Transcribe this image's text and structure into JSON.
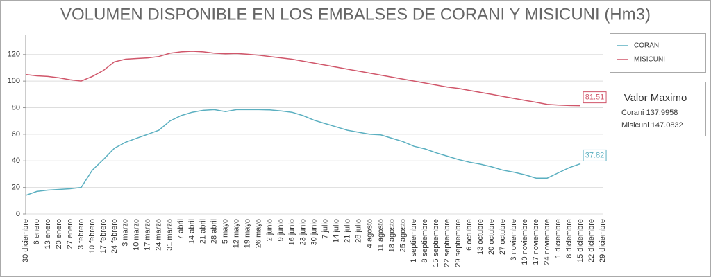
{
  "chart_data": {
    "type": "line",
    "title": "VOLUMEN DISPONIBLE EN LOS EMBALSES DE CORANI Y MISICUNI (Hm3)",
    "categories": [
      "30 diciembre",
      "6 enero",
      "13 enero",
      "20 enero",
      "27 enero",
      "3 febrero",
      "10 febrero",
      "17 febrero",
      "24 febrero",
      "3 marzo",
      "10 marzo",
      "17 marzo",
      "24 marzo",
      "31 marzo",
      "7 abril",
      "14 abril",
      "21 abril",
      "28 abril",
      "5 mayo",
      "12 mayo",
      "19 mayo",
      "26 mayo",
      "2 junio",
      "9 junio",
      "16 junio",
      "23 junio",
      "30 junio",
      "7 julio",
      "14 julio",
      "21 julio",
      "28 julio",
      "4 agosto",
      "11 agosto",
      "18 agosto",
      "25 agosto",
      "1 septiembre",
      "8 septiembre",
      "15 septiembre",
      "22 septiembre",
      "29 septiembre",
      "6 octubre",
      "13 octubre",
      "20 octubre",
      "27 octubre",
      "3 noviembre",
      "10 noviembre",
      "17 noviembre",
      "24 noviembre",
      "1 diciembre",
      "8 diciembre",
      "15 diciembre",
      "22 diciembre",
      "29 diciembre"
    ],
    "series": [
      {
        "name": "CORANI",
        "color": "#5aafc0",
        "values": [
          14,
          17,
          18,
          18.5,
          19,
          20,
          33,
          41,
          49.5,
          54,
          57,
          60,
          63,
          70,
          74,
          76.5,
          78,
          78.5,
          77,
          78.5,
          78.5,
          78.5,
          78.3,
          77.5,
          76.5,
          74,
          70.5,
          68,
          65.5,
          63,
          61.5,
          60,
          59.5,
          57,
          54.5,
          51,
          49,
          46,
          43.5,
          41,
          39,
          37.5,
          35.5,
          33,
          31.5,
          29.5,
          27,
          27,
          31,
          35,
          37.82,
          null,
          null
        ]
      },
      {
        "name": "MISICUNI",
        "color": "#d0566a",
        "values": [
          105,
          104,
          103.5,
          102.5,
          101,
          100,
          103.5,
          108,
          114.5,
          116.5,
          117,
          117.5,
          118.5,
          121,
          122,
          122.5,
          122,
          121,
          120.5,
          120.8,
          120.2,
          119.5,
          118.5,
          117.5,
          116.5,
          115,
          113.5,
          112,
          110.5,
          109,
          107.5,
          106,
          104.5,
          103,
          101.5,
          100,
          98.5,
          97,
          95.5,
          94.5,
          93,
          91.5,
          90,
          88.5,
          87,
          85.5,
          84,
          82.5,
          82,
          81.6,
          81.51,
          null,
          null
        ]
      }
    ],
    "ylim": [
      0,
      135
    ],
    "yticks": [
      0,
      20,
      40,
      60,
      80,
      100,
      120
    ],
    "grid": true,
    "legend": "right",
    "max_panel": {
      "title": "Valor Maximo",
      "items": [
        "Corani 137.9958",
        "Misicuni 147.0832"
      ]
    }
  }
}
